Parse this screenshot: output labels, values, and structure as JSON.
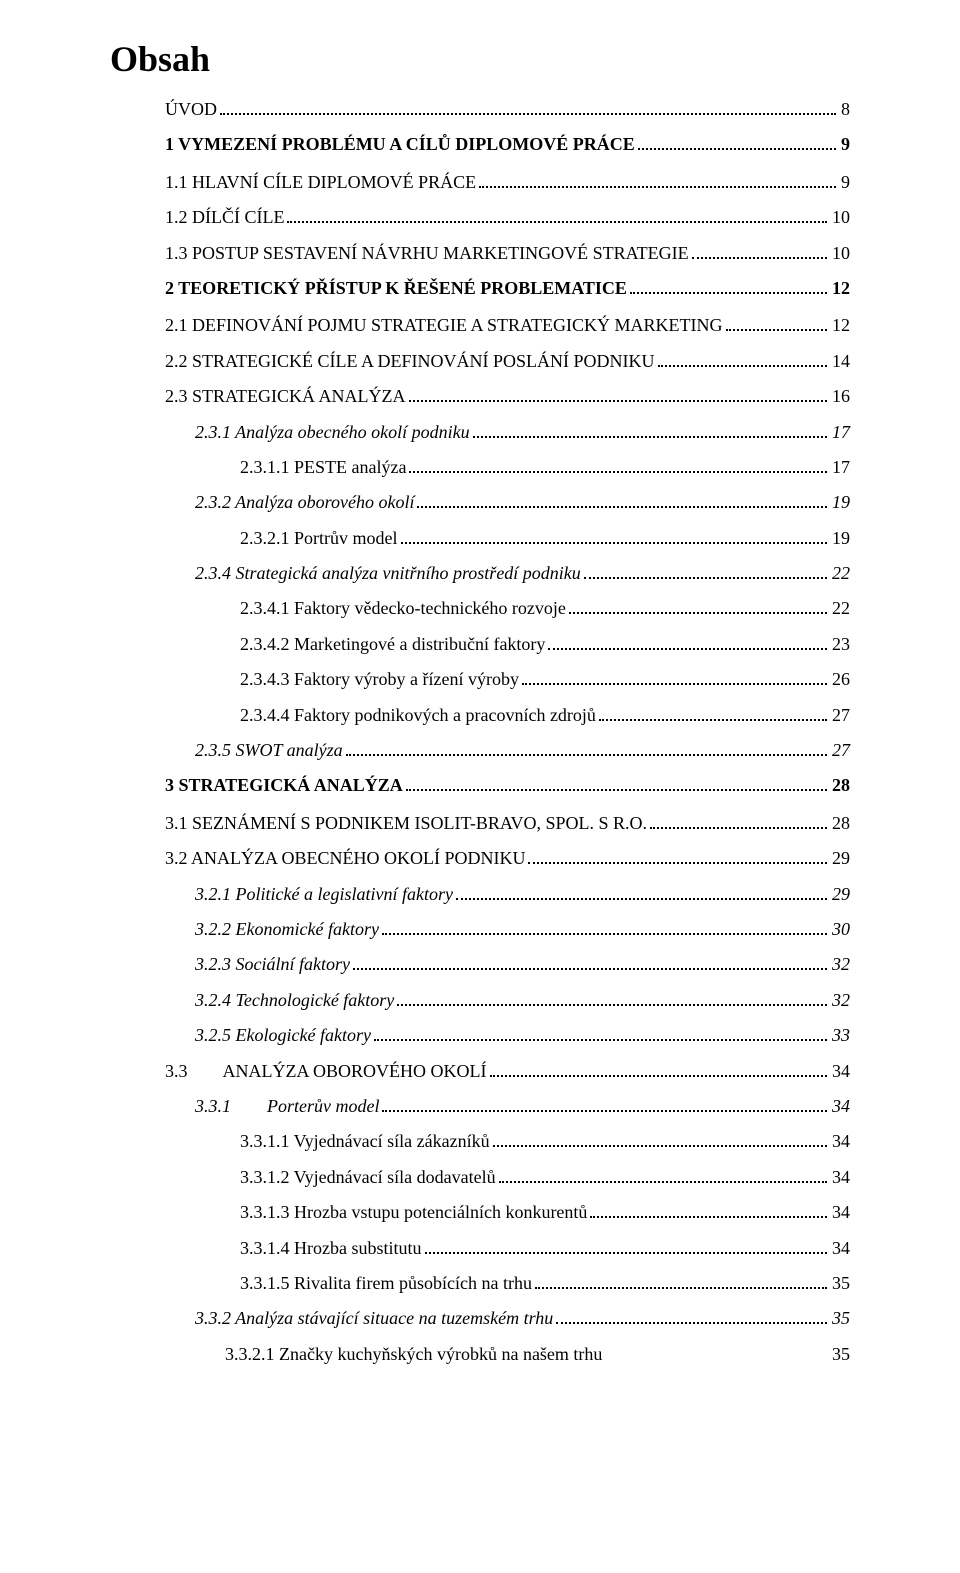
{
  "title": "Obsah",
  "toc": [
    {
      "level": 1,
      "label": "ÚVOD",
      "page": "8"
    },
    {
      "level": 0,
      "label": "1 VYMEZENÍ PROBLÉMU A CÍLŮ DIPLOMOVÉ PRÁCE",
      "page": "9"
    },
    {
      "level": 1,
      "label": "1.1 HLAVNÍ CÍLE DIPLOMOVÉ PRÁCE",
      "page": "9"
    },
    {
      "level": 1,
      "label": "1.2 DÍLČÍ CÍLE",
      "page": "10"
    },
    {
      "level": 1,
      "label": "1.3 POSTUP SESTAVENÍ NÁVRHU MARKETINGOVÉ STRATEGIE",
      "page": "10"
    },
    {
      "level": 0,
      "label": "2 TEORETICKÝ PŘÍSTUP K ŘEŠENÉ PROBLEMATICE",
      "page": "12"
    },
    {
      "level": 1,
      "label": "2.1 DEFINOVÁNÍ POJMU STRATEGIE A STRATEGICKÝ MARKETING",
      "page": "12"
    },
    {
      "level": 1,
      "label": "2.2 STRATEGICKÉ CÍLE A DEFINOVÁNÍ POSLÁNÍ PODNIKU",
      "page": "14"
    },
    {
      "level": 1,
      "label": "2.3 STRATEGICKÁ ANALÝZA",
      "page": "16"
    },
    {
      "level": 2,
      "label": "2.3.1 Analýza obecného okolí podniku",
      "page": "17"
    },
    {
      "level": 3,
      "label": "2.3.1.1 PESTE analýza",
      "page": "17"
    },
    {
      "level": 2,
      "label": "2.3.2 Analýza oborového okolí",
      "page": "19"
    },
    {
      "level": 3,
      "label": "2.3.2.1 Portrův model",
      "page": "19"
    },
    {
      "level": 2,
      "label": "2.3.4 Strategická analýza vnitřního prostředí podniku",
      "page": "22"
    },
    {
      "level": 3,
      "label": "2.3.4.1 Faktory vědecko-technického rozvoje",
      "page": "22"
    },
    {
      "level": 3,
      "label": "2.3.4.2 Marketingové a distribuční faktory",
      "page": "23"
    },
    {
      "level": 3,
      "label": "2.3.4.3 Faktory výroby a řízení výroby",
      "page": "26"
    },
    {
      "level": 3,
      "label": "2.3.4.4 Faktory podnikových a pracovních zdrojů",
      "page": "27"
    },
    {
      "level": 2,
      "label": "2.3.5 SWOT analýza",
      "page": "27"
    },
    {
      "level": 0,
      "label": "3 STRATEGICKÁ ANALÝZA",
      "page": "28"
    },
    {
      "level": 1,
      "label": "3.1 SEZNÁMENÍ S PODNIKEM ISOLIT-BRAVO, SPOL. S R.O.",
      "page": "28"
    },
    {
      "level": 1,
      "label": "3.2 ANALÝZA OBECNÉHO OKOLÍ PODNIKU",
      "page": "29"
    },
    {
      "level": 2,
      "label": "3.2.1 Politické a legislativní faktory",
      "page": "29"
    },
    {
      "level": 2,
      "label": "3.2.2 Ekonomické faktory",
      "page": "30"
    },
    {
      "level": 2,
      "label": "3.2.3 Sociální faktory",
      "page": "32"
    },
    {
      "level": 2,
      "label": "3.2.4 Technologické faktory",
      "page": "32"
    },
    {
      "level": 2,
      "label": "3.2.5 Ekologické faktory",
      "page": "33"
    },
    {
      "level": 1,
      "label": "3.3        ANALÝZA OBOROVÉHO OKOLÍ",
      "page": "34"
    },
    {
      "level": 2,
      "label": "3.3.1        Porterův model",
      "page": "34"
    },
    {
      "level": 3,
      "label": "3.3.1.1 Vyjednávací síla zákazníků",
      "page": "34"
    },
    {
      "level": 3,
      "label": "3.3.1.2 Vyjednávací síla dodavatelů",
      "page": "34"
    },
    {
      "level": 3,
      "label": "3.3.1.3 Hrozba vstupu potenciálních konkurentů",
      "page": "34"
    },
    {
      "level": 3,
      "label": "3.3.1.4 Hrozba substitutu",
      "page": "34"
    },
    {
      "level": 3,
      "label": "3.3.1.5 Rivalita firem působících na trhu",
      "page": "35"
    },
    {
      "level": 2,
      "label": "3.3.2 Analýza stávající situace na tuzemském trhu",
      "page": "35"
    },
    {
      "level": 4,
      "label": "3.3.2.1 Značky kuchyňských výrobků na našem trhu",
      "page": "35",
      "noleader": true
    }
  ]
}
